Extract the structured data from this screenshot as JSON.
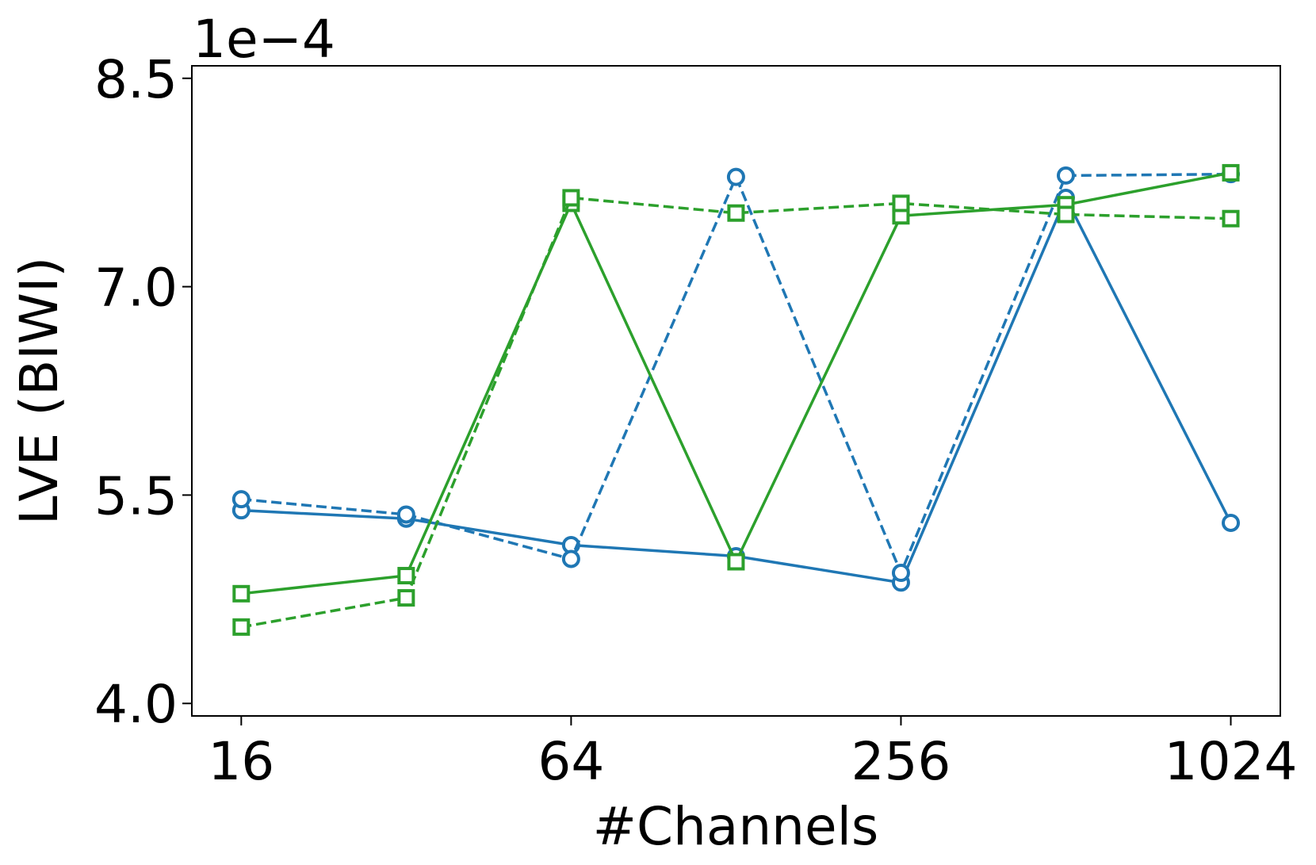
{
  "chart_data": {
    "type": "line",
    "offset_text": "1e−4",
    "xlabel": "#Channels",
    "ylabel": "LVE (BIWI)",
    "x": [
      16,
      32,
      64,
      128,
      256,
      512,
      1024
    ],
    "xscale": "log2",
    "xlim": [
      13,
      1261
    ],
    "xticks": [
      16,
      64,
      256,
      1024
    ],
    "ylim": [
      3.91,
      8.59
    ],
    "yticks": [
      {
        "value": 4,
        "label": "4.0"
      },
      5.5,
      {
        "value": 7,
        "label": "7.0"
      },
      8.5
    ],
    "grid": false,
    "series": [
      {
        "color": "#1f77b4",
        "linestyle": "solid",
        "marker": "circle",
        "values": [
          5.39,
          5.33,
          5.14,
          5.06,
          4.87,
          7.64,
          5.3
        ]
      },
      {
        "color": "#1f77b4",
        "linestyle": "dashed",
        "marker": "circle",
        "values": [
          5.47,
          5.36,
          5.04,
          7.79,
          4.94,
          7.8,
          7.81
        ]
      },
      {
        "color": "#2ca02c",
        "linestyle": "solid",
        "marker": "square",
        "values": [
          4.79,
          4.92,
          7.6,
          5.02,
          7.51,
          7.59,
          7.82
        ]
      },
      {
        "color": "#2ca02c",
        "linestyle": "dashed",
        "marker": "square",
        "values": [
          4.55,
          4.76,
          7.64,
          7.53,
          7.6,
          7.52,
          7.49
        ]
      }
    ]
  }
}
